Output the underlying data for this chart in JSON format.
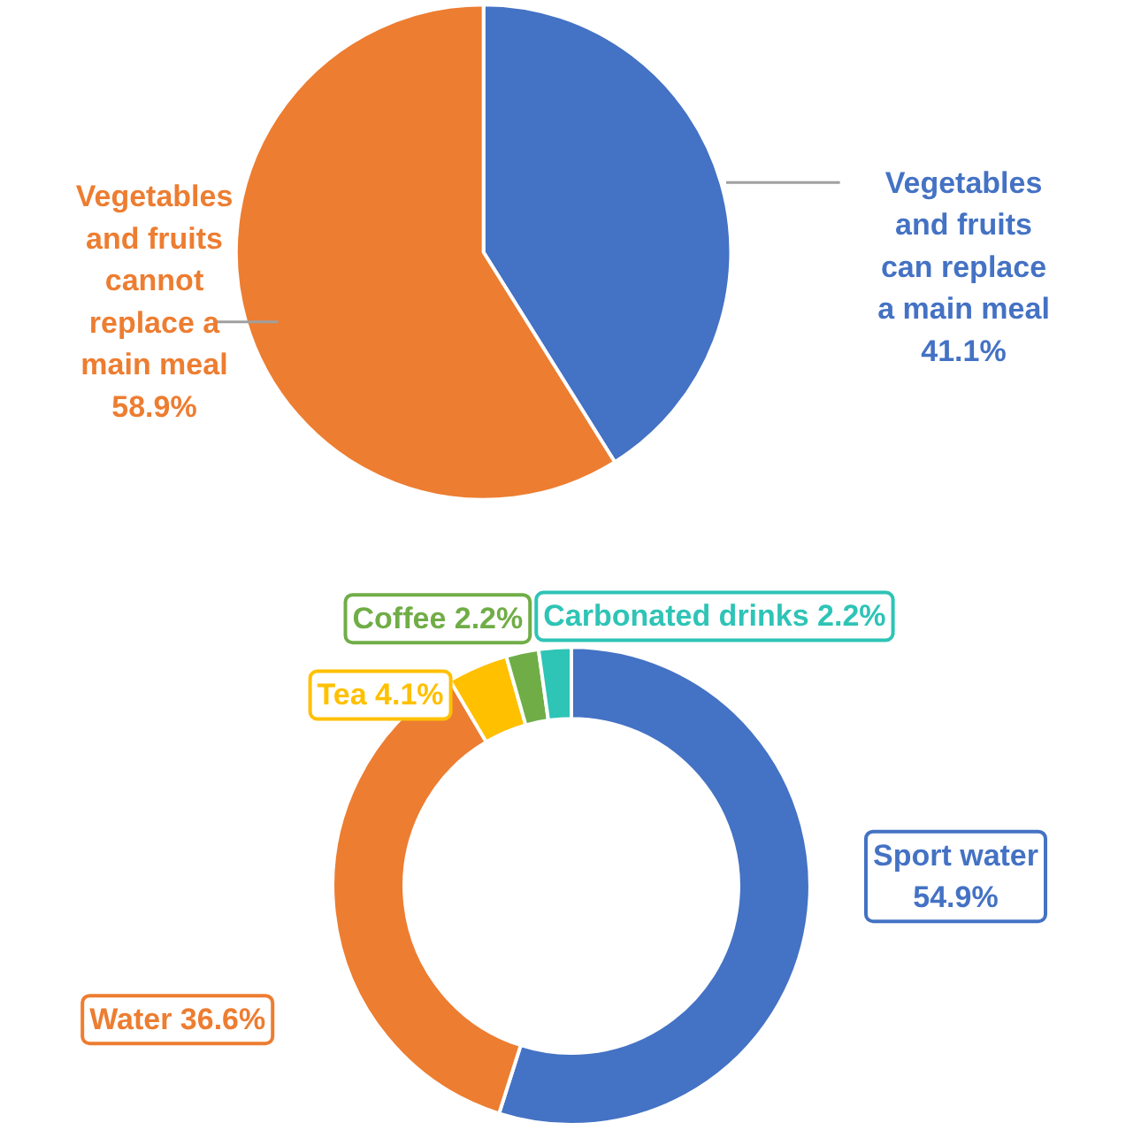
{
  "chart_data": [
    {
      "type": "pie",
      "categories": [
        "Vegetables and fruits can replace a main meal",
        "Vegetables and fruits cannot replace a main meal"
      ],
      "values": [
        41.1,
        58.9
      ],
      "colors": [
        "#4472c4",
        "#ed7d31"
      ],
      "value_labels": [
        "41.1%",
        "58.9%"
      ]
    },
    {
      "type": "donut",
      "categories": [
        "Sport water",
        "Water",
        "Tea",
        "Coffee",
        "Carbonated drinks"
      ],
      "values": [
        54.9,
        36.6,
        4.1,
        2.2,
        2.2
      ],
      "colors": [
        "#4472c4",
        "#ed7d31",
        "#ffc000",
        "#70ad47",
        "#2ec4b6"
      ],
      "value_labels": [
        "54.9%",
        "36.6%",
        "4.1%",
        "2.2%",
        "2.2%"
      ]
    }
  ]
}
